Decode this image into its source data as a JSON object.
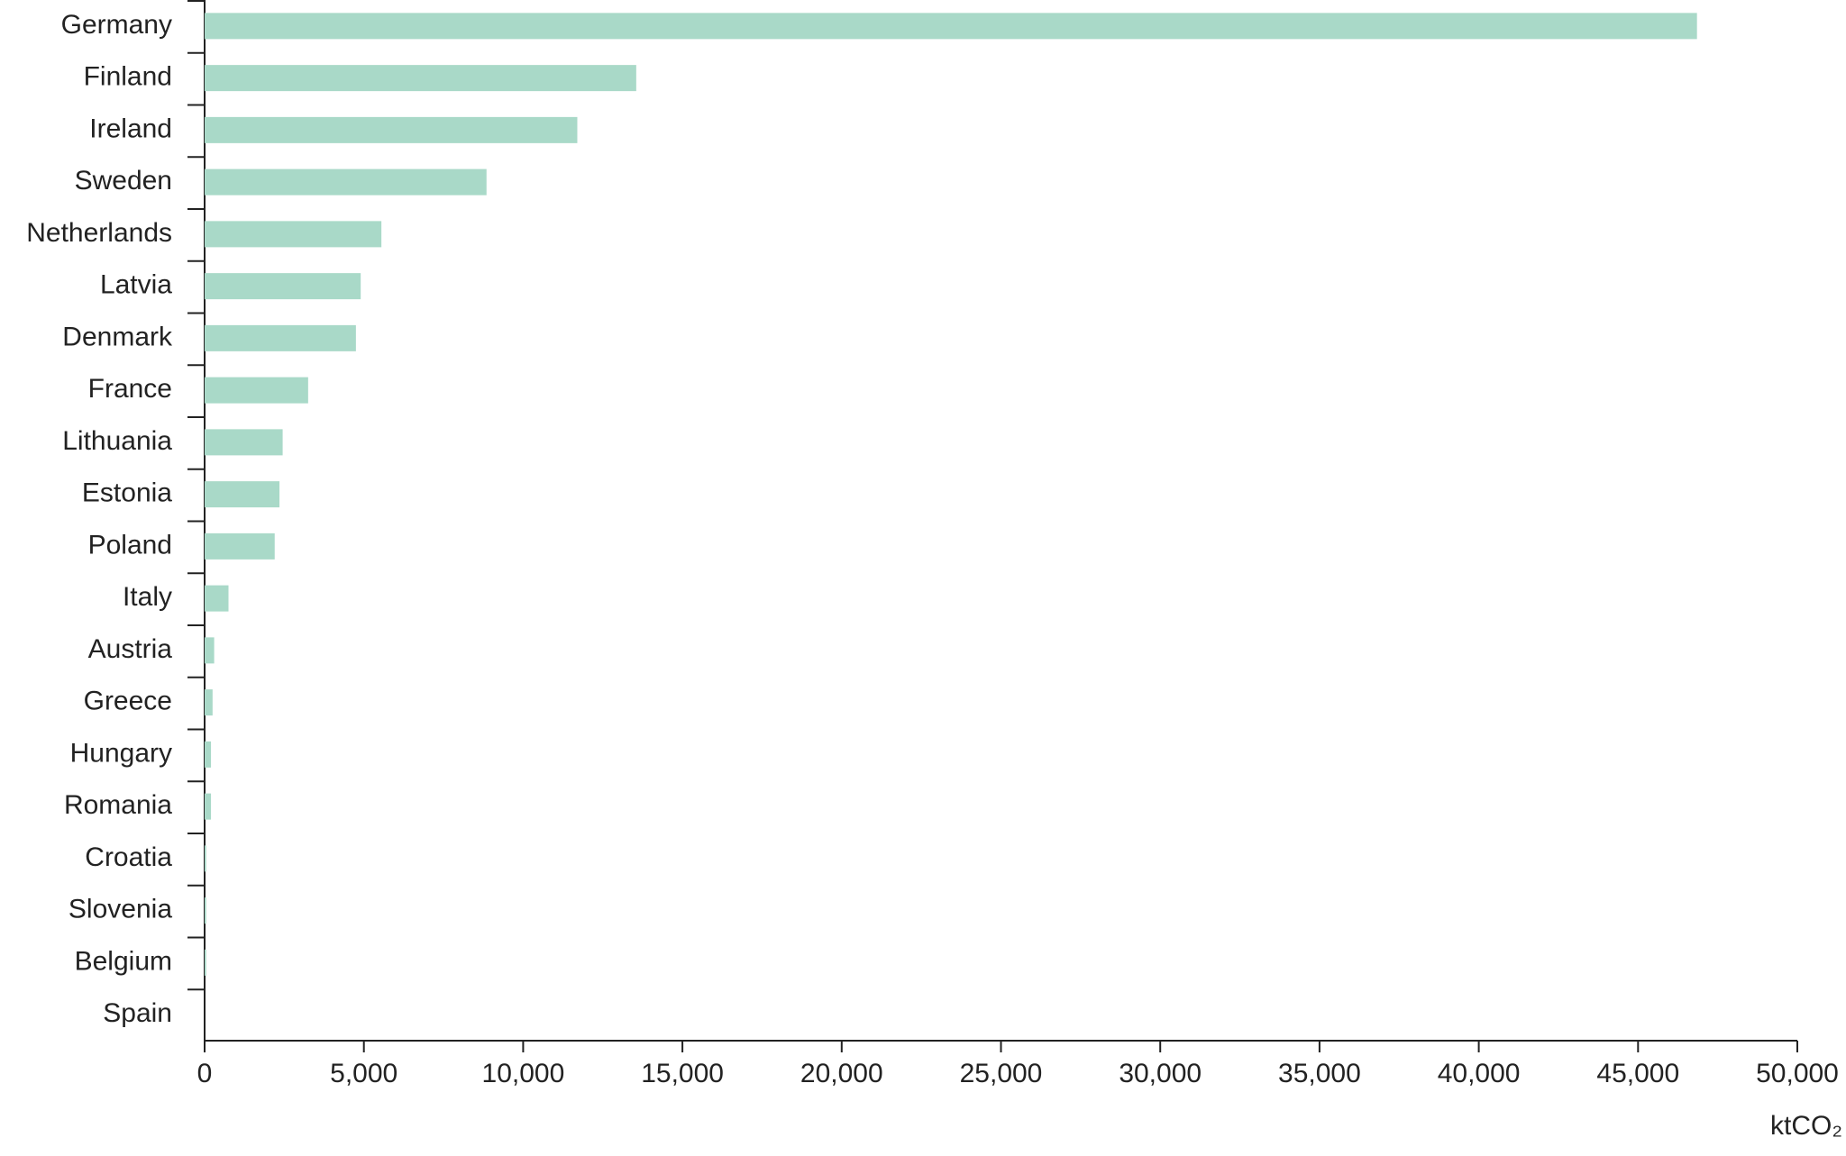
{
  "chart_data": {
    "type": "hbar",
    "categories": [
      "Germany",
      "Finland",
      "Ireland",
      "Sweden",
      "Netherlands",
      "Latvia",
      "Denmark",
      "France",
      "Lithuania",
      "Estonia",
      "Poland",
      "Italy",
      "Austria",
      "Greece",
      "Hungary",
      "Romania",
      "Croatia",
      "Slovenia",
      "Belgium",
      "Spain"
    ],
    "values": [
      46850,
      13550,
      11700,
      8850,
      5550,
      4900,
      4750,
      3250,
      2450,
      2350,
      2200,
      750,
      300,
      250,
      200,
      200,
      50,
      50,
      50,
      0
    ],
    "color": "#a9d9c8",
    "x_label": "ktCO₂",
    "xlim": [
      0,
      50000
    ],
    "xticks": [
      0,
      {
        "value": 5000,
        "label": "5,000"
      },
      {
        "value": 10000,
        "label": "10,000"
      },
      {
        "value": 15000,
        "label": "15,000"
      },
      {
        "value": 20000,
        "label": "20,000"
      },
      {
        "value": 25000,
        "label": "25,000"
      },
      {
        "value": 30000,
        "label": "30,000"
      },
      {
        "value": 35000,
        "label": "35,000"
      },
      {
        "value": 40000,
        "label": "40,000"
      },
      {
        "value": 45000,
        "label": "45,000"
      },
      {
        "value": 50000,
        "label": "50,000"
      }
    ]
  }
}
